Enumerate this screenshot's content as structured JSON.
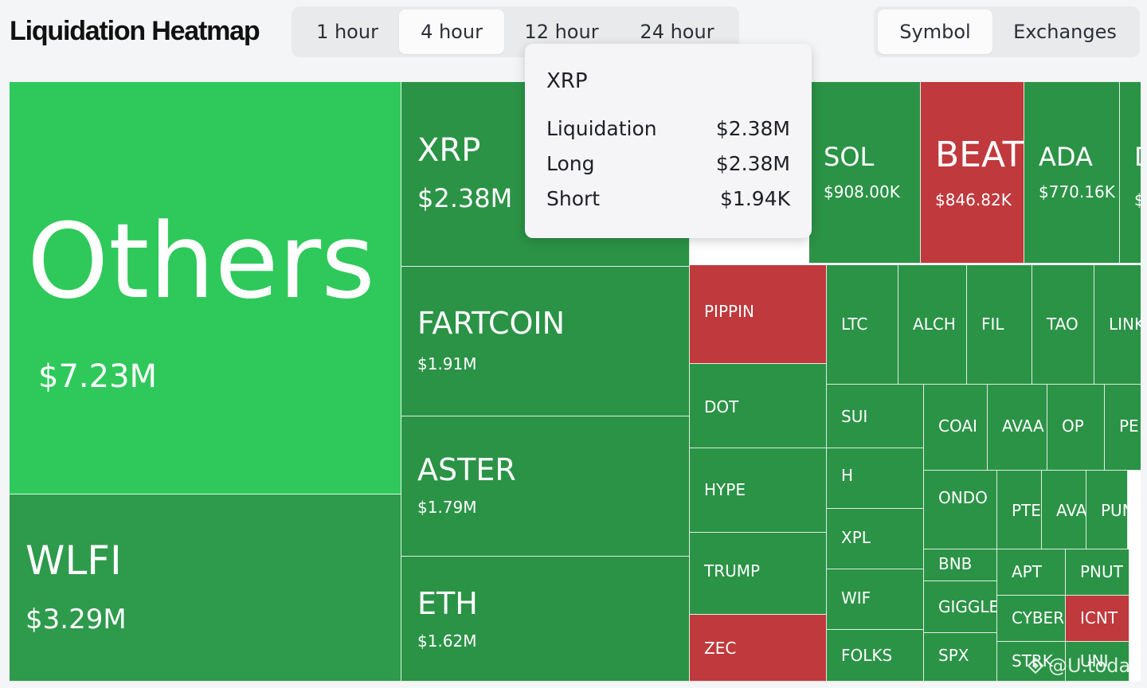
{
  "header": {
    "title": "Liquidation Heatmap"
  },
  "timeframes": [
    "1 hour",
    "4 hour",
    "12 hour",
    "24 hour"
  ],
  "active_timeframe": "4 hour",
  "view_modes": [
    "Symbol",
    "Exchanges"
  ],
  "active_view": "Symbol",
  "colors": {
    "long_dominant": "#2e9a4c",
    "others_highlight": "#2fc95b",
    "short_dominant": "#c0393d"
  },
  "tooltip": {
    "symbol": "XRP",
    "rows": [
      {
        "label": "Liquidation",
        "value": "$2.38M"
      },
      {
        "label": "Long",
        "value": "$2.38M"
      },
      {
        "label": "Short",
        "value": "$1.94K"
      }
    ]
  },
  "tiles": [
    {
      "id": "others",
      "symbol": "Others",
      "value": "$7.23M",
      "tone": "long"
    },
    {
      "id": "wlfi",
      "symbol": "WLFI",
      "value": "$3.29M",
      "tone": "long"
    },
    {
      "id": "xrp",
      "symbol": "XRP",
      "value": "$2.38M",
      "tone": "long"
    },
    {
      "id": "fartcoin",
      "symbol": "FARTCOIN",
      "value": "$1.91M",
      "tone": "long"
    },
    {
      "id": "aster",
      "symbol": "ASTER",
      "value": "$1.79M",
      "tone": "long"
    },
    {
      "id": "eth",
      "symbol": "ETH",
      "value": "$1.62M",
      "tone": "long"
    },
    {
      "id": "sol",
      "symbol": "SOL",
      "value": "$908.00K",
      "tone": "long"
    },
    {
      "id": "beat",
      "symbol": "BEAT",
      "value": "$846.82K",
      "tone": "short"
    },
    {
      "id": "ada",
      "symbol": "ADA",
      "value": "$770.16K",
      "tone": "long"
    },
    {
      "id": "cut-d",
      "symbol": "D",
      "value": "$",
      "tone": "long"
    },
    {
      "id": "pippin",
      "symbol": "PIPPIN",
      "tone": "short"
    },
    {
      "id": "ltc",
      "symbol": "LTC",
      "tone": "long"
    },
    {
      "id": "alch",
      "symbol": "ALCH",
      "tone": "long"
    },
    {
      "id": "fil",
      "symbol": "FIL",
      "tone": "long"
    },
    {
      "id": "tao",
      "symbol": "TAO",
      "tone": "long"
    },
    {
      "id": "link",
      "symbol": "LINK",
      "tone": "long"
    },
    {
      "id": "dot",
      "symbol": "DOT",
      "tone": "long"
    },
    {
      "id": "sui",
      "symbol": "SUI",
      "tone": "long"
    },
    {
      "id": "coai",
      "symbol": "COAI",
      "tone": "long"
    },
    {
      "id": "avaa",
      "symbol": "AVAA",
      "tone": "long"
    },
    {
      "id": "op",
      "symbol": "OP",
      "tone": "long"
    },
    {
      "id": "pe",
      "symbol": "PE",
      "tone": "long"
    },
    {
      "id": "hype",
      "symbol": "HYPE",
      "tone": "long"
    },
    {
      "id": "h",
      "symbol": "H",
      "tone": "long"
    },
    {
      "id": "ondo",
      "symbol": "ONDO",
      "tone": "long"
    },
    {
      "id": "pte",
      "symbol": "PTE",
      "tone": "long"
    },
    {
      "id": "ava",
      "symbol": "AVA",
      "tone": "long"
    },
    {
      "id": "pun",
      "symbol": "PUN",
      "tone": "long"
    },
    {
      "id": "xpl",
      "symbol": "XPL",
      "tone": "long"
    },
    {
      "id": "bnb",
      "symbol": "BNB",
      "tone": "long"
    },
    {
      "id": "apt",
      "symbol": "APT",
      "tone": "long"
    },
    {
      "id": "pnut",
      "symbol": "PNUT",
      "tone": "long"
    },
    {
      "id": "trump",
      "symbol": "TRUMP",
      "tone": "long"
    },
    {
      "id": "wif",
      "symbol": "WIF",
      "tone": "long"
    },
    {
      "id": "giggle",
      "symbol": "GIGGLE",
      "tone": "long"
    },
    {
      "id": "cyber",
      "symbol": "CYBER",
      "tone": "long"
    },
    {
      "id": "icnt",
      "symbol": "ICNT",
      "tone": "short"
    },
    {
      "id": "zec",
      "symbol": "ZEC",
      "tone": "short"
    },
    {
      "id": "folks",
      "symbol": "FOLKS",
      "tone": "long"
    },
    {
      "id": "spx",
      "symbol": "SPX",
      "tone": "long"
    },
    {
      "id": "strk",
      "symbol": "STRK",
      "tone": "long"
    },
    {
      "id": "uni",
      "symbol": "UNI",
      "tone": "long"
    }
  ],
  "watermark": "@U.today"
}
